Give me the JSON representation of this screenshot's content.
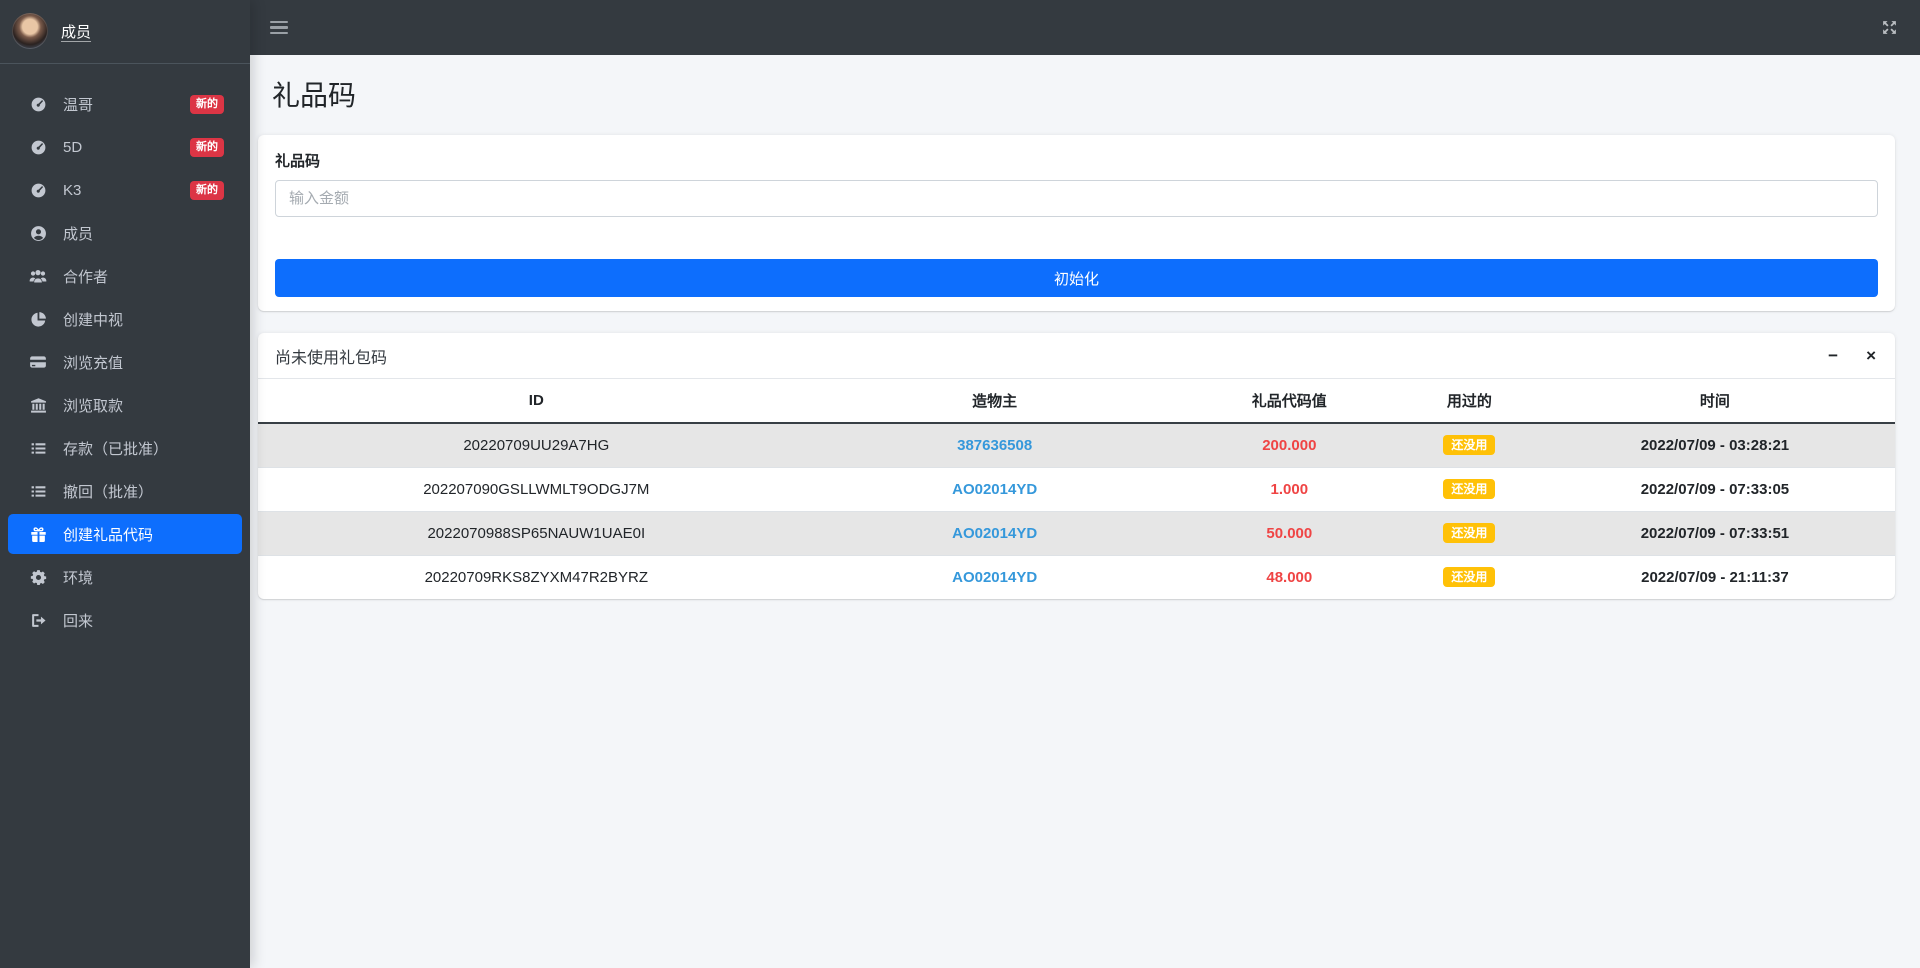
{
  "colors": {
    "sidebar_bg": "#343a40",
    "primary_blue": "#0d6efd",
    "badge_red": "#dc3545",
    "badge_yellow": "#ffc107",
    "value_red": "#ef4444",
    "creator_blue": "#3598db",
    "content_bg": "#f4f6f9"
  },
  "sidebar": {
    "user_name": "成员",
    "items": [
      {
        "label": "温哥",
        "icon": "tachometer",
        "badge": "新的",
        "active": false
      },
      {
        "label": "5D",
        "icon": "tachometer",
        "badge": "新的",
        "active": false
      },
      {
        "label": "K3",
        "icon": "tachometer",
        "badge": "新的",
        "active": false
      },
      {
        "label": "成员",
        "icon": "user-circle",
        "active": false
      },
      {
        "label": "合作者",
        "icon": "users",
        "active": false
      },
      {
        "label": "创建中视",
        "icon": "chart-pie",
        "active": false
      },
      {
        "label": "浏览充值",
        "icon": "credit-card",
        "active": false
      },
      {
        "label": "浏览取款",
        "icon": "bank",
        "active": false
      },
      {
        "label": "存款（已批准）",
        "icon": "list",
        "active": false
      },
      {
        "label": "撤回（批准）",
        "icon": "list",
        "active": false
      },
      {
        "label": "创建礼品代码",
        "icon": "gift",
        "active": true
      },
      {
        "label": "环境",
        "icon": "gear",
        "active": false
      },
      {
        "label": "回来",
        "icon": "sign-out",
        "active": false
      }
    ]
  },
  "page": {
    "title": "礼品码"
  },
  "gift_form": {
    "label": "礼品码",
    "placeholder": "输入金额",
    "submit": "初始化"
  },
  "gift_table": {
    "title": "尚未使用礼包码",
    "tools": {
      "minimize": "−",
      "close": "×"
    },
    "columns": [
      "ID",
      "造物主",
      "礼品代码值",
      "用过的",
      "时间"
    ],
    "rows": [
      {
        "id": "20220709UU29A7HG",
        "creator": "387636508",
        "value": "200.000",
        "used": "还没用",
        "time": "2022/07/09 - 03:28:21"
      },
      {
        "id": "202207090GSLLWMLT9ODGJ7M",
        "creator": "AO02014YD",
        "value": "1.000",
        "used": "还没用",
        "time": "2022/07/09 - 07:33:05"
      },
      {
        "id": "2022070988SP65NAUW1UAE0I",
        "creator": "AO02014YD",
        "value": "50.000",
        "used": "还没用",
        "time": "2022/07/09 - 07:33:51"
      },
      {
        "id": "20220709RKS8ZYXM47R2BYRZ",
        "creator": "AO02014YD",
        "value": "48.000",
        "used": "还没用",
        "time": "2022/07/09 - 21:11:37"
      }
    ]
  }
}
